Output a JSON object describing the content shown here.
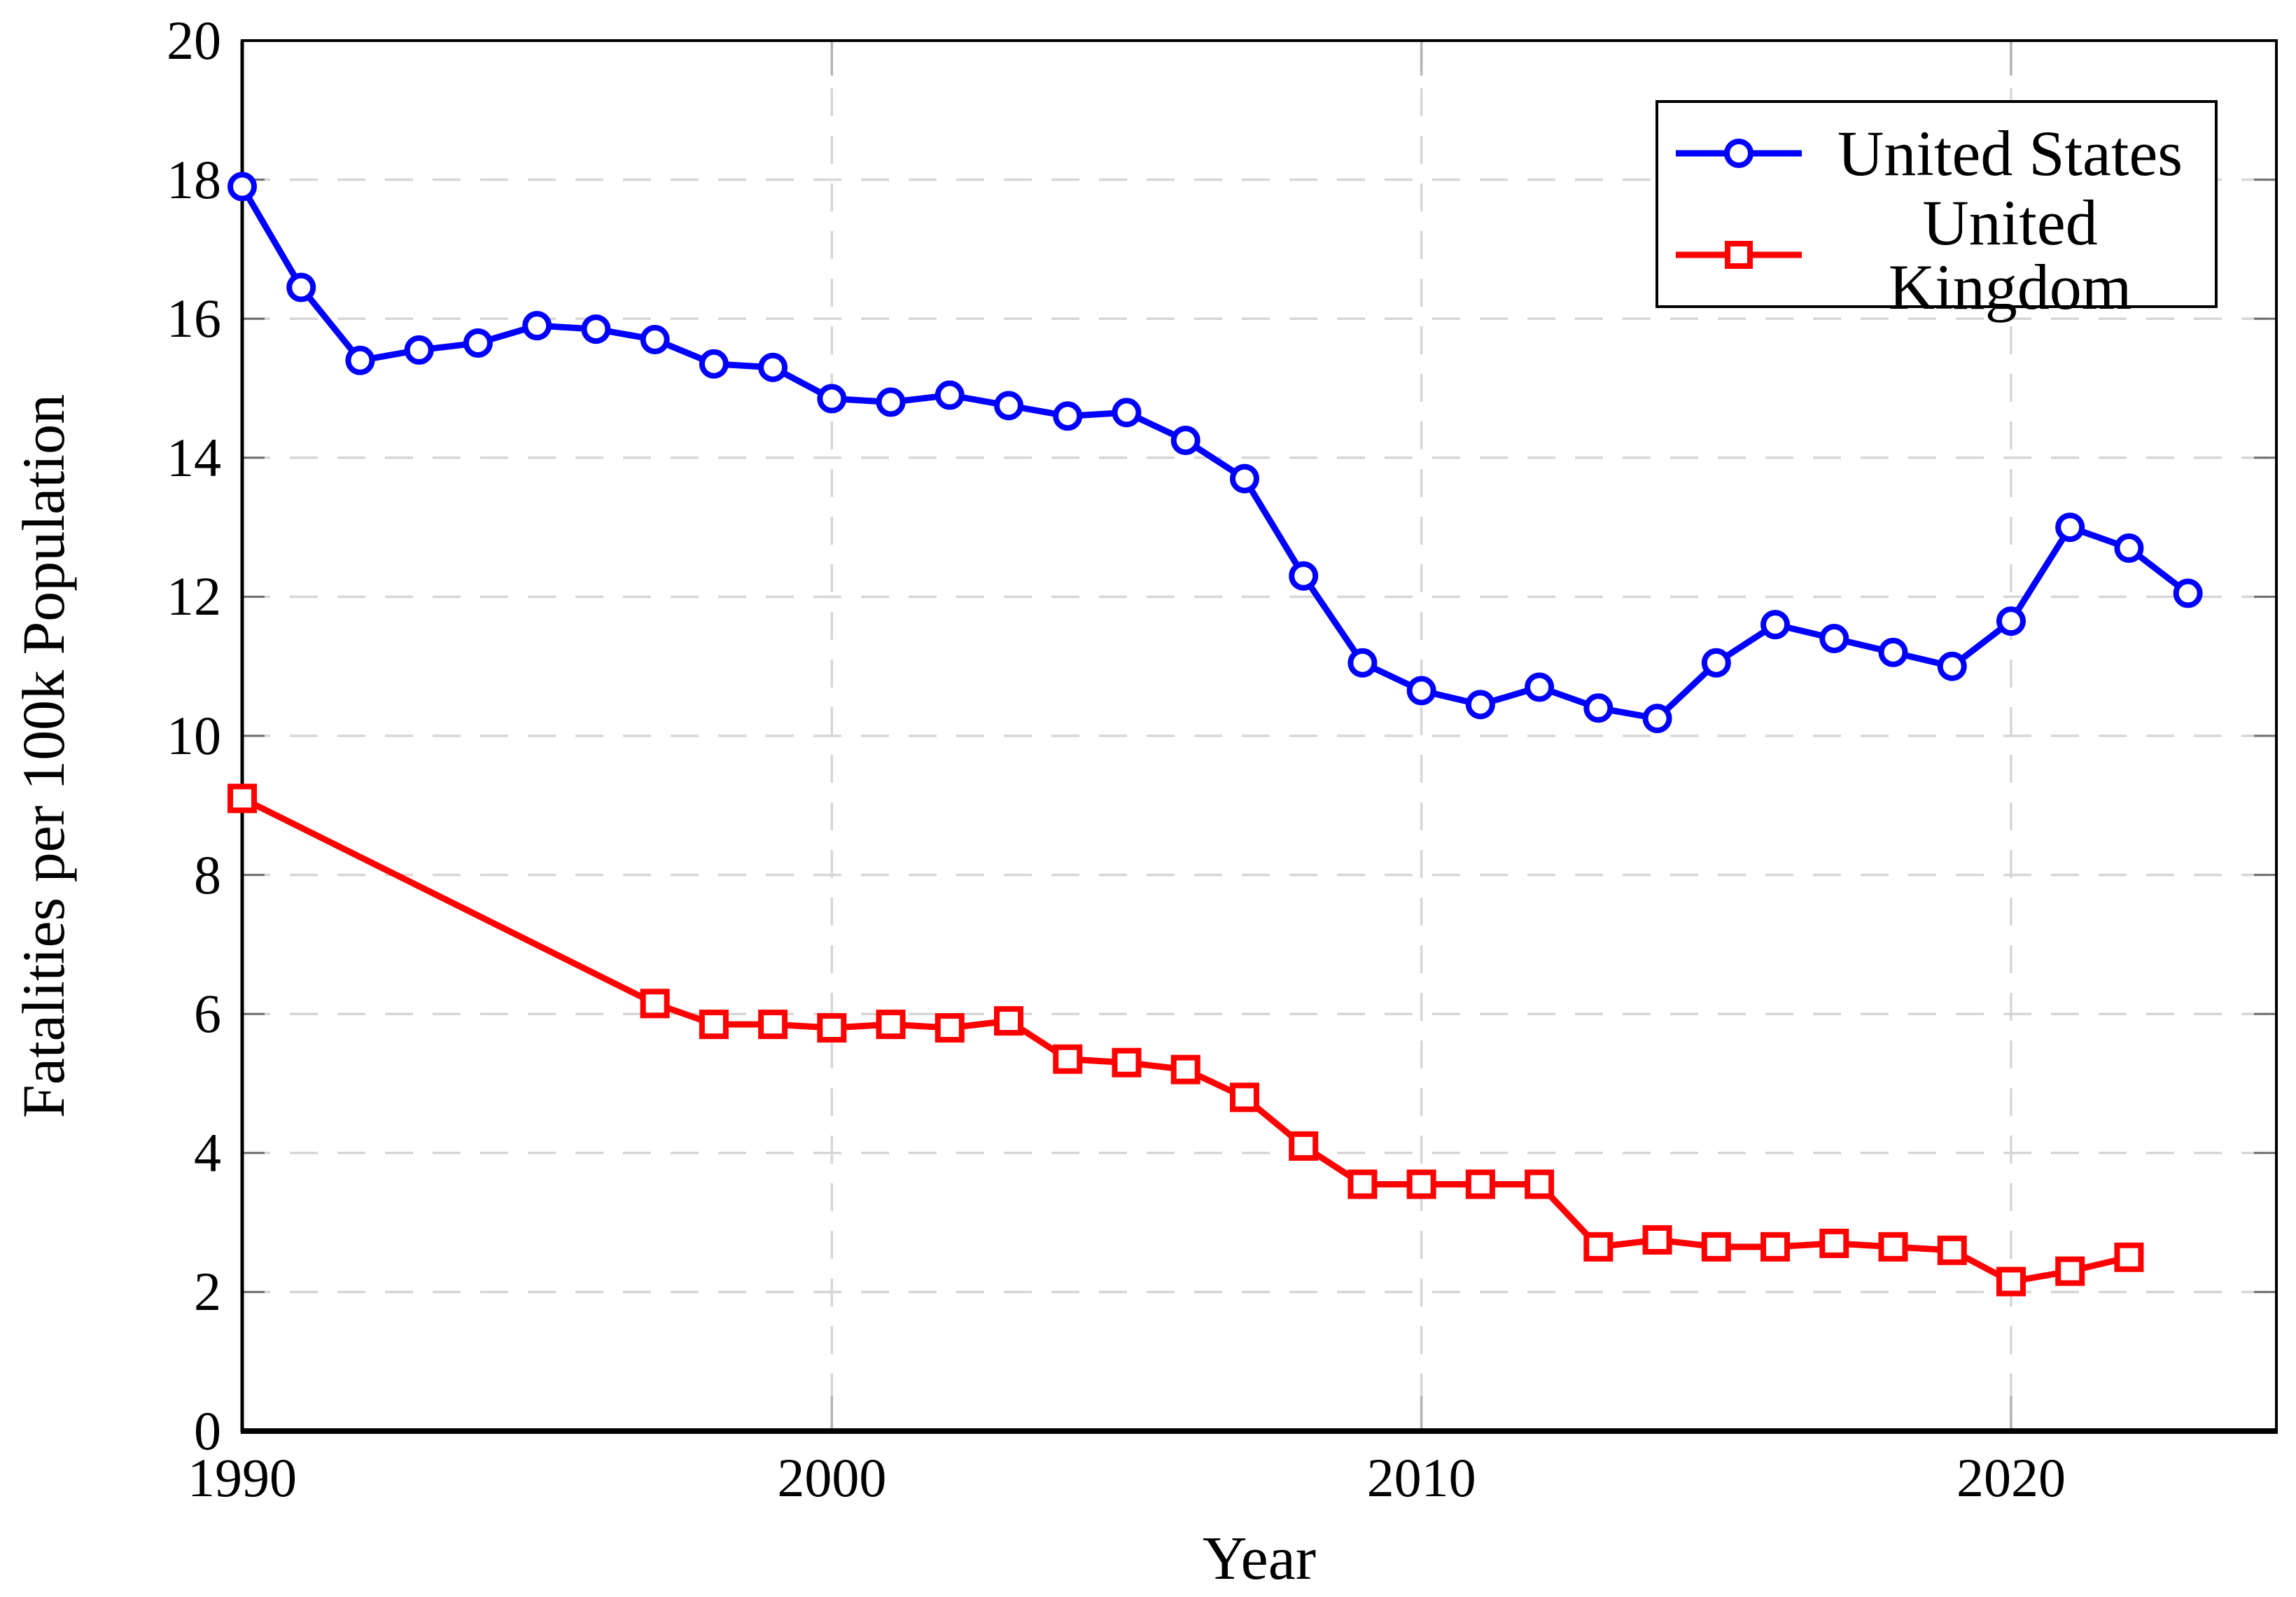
{
  "chart_data": {
    "type": "line",
    "title": "",
    "xlabel": "Year",
    "ylabel": "Fatalities per 100k Population",
    "xlim": [
      1990,
      2024.5
    ],
    "ylim": [
      0,
      20
    ],
    "xticks": [
      1990,
      2000,
      2010,
      2020
    ],
    "yticks": [
      0,
      2,
      4,
      6,
      8,
      10,
      12,
      14,
      16,
      18,
      20
    ],
    "grid": "dashed-major",
    "legend_position": "top-right-inside",
    "series": [
      {
        "name": "United States",
        "color": "#0000ff",
        "marker": "circle",
        "x": [
          1990,
          1991,
          1992,
          1993,
          1994,
          1995,
          1996,
          1997,
          1998,
          1999,
          2000,
          2001,
          2002,
          2003,
          2004,
          2005,
          2006,
          2007,
          2008,
          2009,
          2010,
          2011,
          2012,
          2013,
          2014,
          2015,
          2016,
          2017,
          2018,
          2019,
          2020,
          2021,
          2022,
          2023
        ],
        "y": [
          17.9,
          16.45,
          15.4,
          15.55,
          15.65,
          15.9,
          15.85,
          15.7,
          15.35,
          15.3,
          14.85,
          14.8,
          14.9,
          14.75,
          14.6,
          14.65,
          14.25,
          13.7,
          12.3,
          11.05,
          10.65,
          10.45,
          10.7,
          10.4,
          10.25,
          11.05,
          11.6,
          11.4,
          11.2,
          11.0,
          11.65,
          13.0,
          12.7,
          12.05
        ]
      },
      {
        "name": "United Kingdom",
        "color": "#ff0000",
        "marker": "square",
        "x": [
          1990,
          1997,
          1998,
          1999,
          2000,
          2001,
          2002,
          2003,
          2004,
          2005,
          2006,
          2007,
          2008,
          2009,
          2010,
          2011,
          2012,
          2013,
          2014,
          2015,
          2016,
          2017,
          2018,
          2019,
          2020,
          2021,
          2022
        ],
        "y": [
          9.1,
          6.15,
          5.85,
          5.85,
          5.8,
          5.85,
          5.8,
          5.9,
          5.35,
          5.3,
          5.2,
          4.8,
          4.1,
          3.55,
          3.55,
          3.55,
          3.55,
          2.65,
          2.75,
          2.65,
          2.65,
          2.7,
          2.65,
          2.6,
          2.15,
          2.3,
          2.5
        ]
      }
    ]
  },
  "colors": {
    "background": "#ffffff",
    "axis": "#000000",
    "grid": "#d6d6d6",
    "y_tick": "#6f6f6f",
    "x_tick": "#b3b3b3",
    "marker_fill": "#ffffff",
    "text": "#000000"
  }
}
